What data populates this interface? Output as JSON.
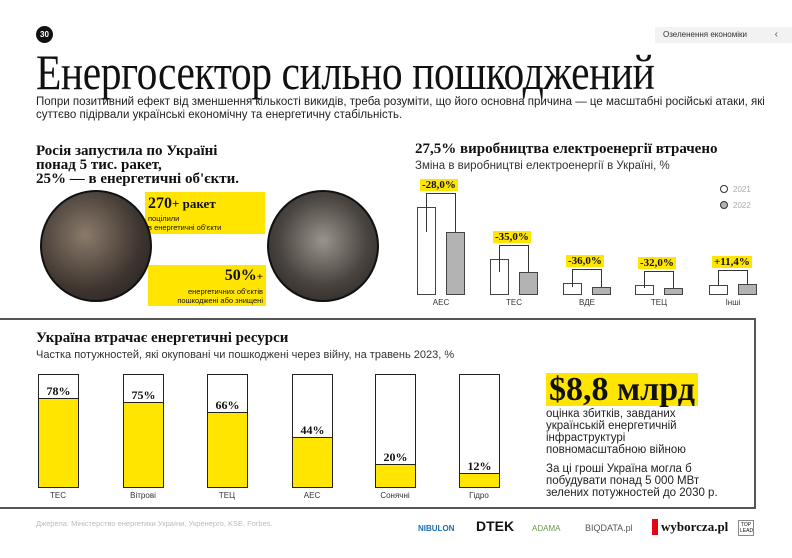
{
  "page_number": "30",
  "nav": {
    "section": "Озеленення економіки",
    "chevron": "‹"
  },
  "title": "Енергосектор сильно пошкоджений",
  "lead": "Попри позитивний ефект від зменшення кількості викидів, треба розуміти, що його основна причина — це масштабні російські атаки, які суттєво підірвали українські економічну та енергетичну стабільність.",
  "attacks": {
    "heading_lines": [
      "Росія запустила по Україні",
      "понад 5 тис. ракет,",
      "25% — в енергетичні об'єкти."
    ],
    "stat1": {
      "value": "270",
      "suffix": "+ ракет",
      "text_lines": [
        "поцілили",
        "в енергетичні об'єкти"
      ]
    },
    "stat2": {
      "value": "50%",
      "suffix": "+",
      "text_lines": [
        "енергетичних об'єктів",
        "пошкоджені або знищені"
      ]
    }
  },
  "chart_data": [
    {
      "type": "bar",
      "title": "27,5% виробництва електроенергії втрачено",
      "subtitle": "Зміна в виробництві електроенергії в Україні, %",
      "categories": [
        "АЕС",
        "ТЕС",
        "ВДЕ",
        "ТЕЦ",
        "Інші"
      ],
      "series": [
        {
          "name": "2021",
          "color": "#ffffff",
          "values": [
            86,
            35,
            12,
            9.5,
            10
          ]
        },
        {
          "name": "2022",
          "color": "#b3b3b3",
          "values": [
            62,
            23,
            7.7,
            6.5,
            11
          ]
        }
      ],
      "change_labels": [
        "-28,0%",
        "-35,0%",
        "-36,0%",
        "-32,0%",
        "+11,4%"
      ],
      "legend_position": "top-right"
    },
    {
      "type": "bar",
      "title": "Україна втрачає енергетичні ресурси",
      "subtitle": "Частка потужностей, які окуповані чи пошкоджені через війну, на травень 2023, %",
      "categories": [
        "ТЕС",
        "Вітрові",
        "ТЕЦ",
        "АЕС",
        "Сонячні",
        "Гідро"
      ],
      "values": [
        78,
        75,
        66,
        44,
        20,
        12
      ],
      "value_labels": [
        "78%",
        "75%",
        "66%",
        "44%",
        "20%",
        "12%"
      ],
      "ylim": [
        0,
        100
      ]
    }
  ],
  "damage": {
    "amount": "$8,8 млрд",
    "text": "оцінка збитків, завданих українській енергетичній інфраструктурі повномасштабною війною",
    "note": "За ці гроші Україна могла б побудувати понад 5 000 МВт зелених потужностей до 2030 р."
  },
  "sources": "Джерела: Міністерство енергетики України, Укренерго, KSE, Forbes.",
  "logos": [
    "NIBULON",
    "DTEK",
    "ADAMA",
    "BIQDATA.pl",
    "wyborcza.pl",
    "TOP LEAD"
  ],
  "colors": {
    "accent": "#ffe500",
    "bar2022": "#b3b3b3"
  }
}
